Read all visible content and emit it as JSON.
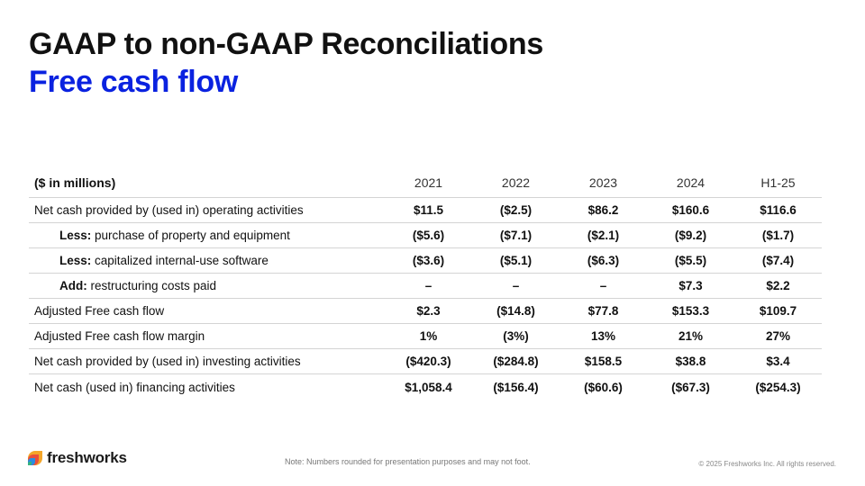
{
  "header": {
    "title": "GAAP to non-GAAP Reconciliations",
    "subtitle": "Free cash flow"
  },
  "table": {
    "unit_label": "($ in millions)",
    "columns": [
      "2021",
      "2022",
      "2023",
      "2024",
      "H1-25"
    ],
    "rows": [
      {
        "prefix": "",
        "label": "Net cash provided by (used in) operating activities",
        "values": [
          "$11.5",
          "($2.5)",
          "$86.2",
          "$160.6",
          "$116.6"
        ]
      },
      {
        "prefix": "Less:",
        "label": " purchase of property and equipment",
        "values": [
          "($5.6)",
          "($7.1)",
          "($2.1)",
          "($9.2)",
          "($1.7)"
        ]
      },
      {
        "prefix": "Less:",
        "label": " capitalized internal-use software",
        "values": [
          "($3.6)",
          "($5.1)",
          "($6.3)",
          "($5.5)",
          "($7.4)"
        ]
      },
      {
        "prefix": "Add:",
        "label": " restructuring costs paid",
        "values": [
          "–",
          "–",
          "–",
          "$7.3",
          "$2.2"
        ]
      },
      {
        "prefix": "",
        "label": "Adjusted Free cash flow",
        "values": [
          "$2.3",
          "($14.8)",
          "$77.8",
          "$153.3",
          "$109.7"
        ]
      },
      {
        "prefix": "",
        "label": "Adjusted Free cash flow margin",
        "values": [
          "1%",
          "(3%)",
          "13%",
          "21%",
          "27%"
        ]
      },
      {
        "prefix": "",
        "label": "Net cash provided by (used in) investing activities",
        "values": [
          "($420.3)",
          "($284.8)",
          "$158.5",
          "$38.8",
          "$3.4"
        ]
      },
      {
        "prefix": "",
        "label": "Net cash (used in) financing activities",
        "values": [
          "$1,058.4",
          "($156.4)",
          "($60.6)",
          "($67.3)",
          "($254.3)"
        ]
      }
    ]
  },
  "footer": {
    "logo_text": "freshworks",
    "logo_icon": "freshworks-logo-icon",
    "note": "Note: Numbers rounded for presentation purposes and may not foot.",
    "copyright": "© 2025 Freshworks Inc. All rights reserved."
  },
  "colors": {
    "title": "#111111",
    "subtitle": "#0a22e0"
  }
}
